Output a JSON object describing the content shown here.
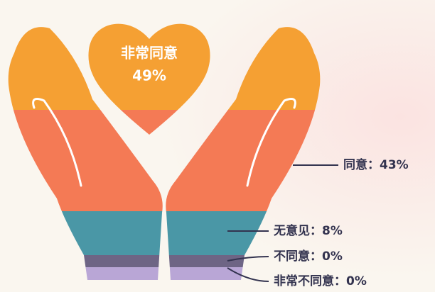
{
  "chart_data": {
    "type": "pictorial",
    "categories": [
      "非常同意",
      "同意",
      "无意见",
      "不同意",
      "非常不同意"
    ],
    "values": [
      49,
      43,
      8,
      0,
      0
    ],
    "value_labels": [
      "49%",
      "43%",
      "8%",
      "0%",
      "0%"
    ],
    "separator": "：",
    "colors": [
      "#F5A033",
      "#F47A55",
      "#4A97A6",
      "#6E6585",
      "#B9A6D6"
    ]
  }
}
